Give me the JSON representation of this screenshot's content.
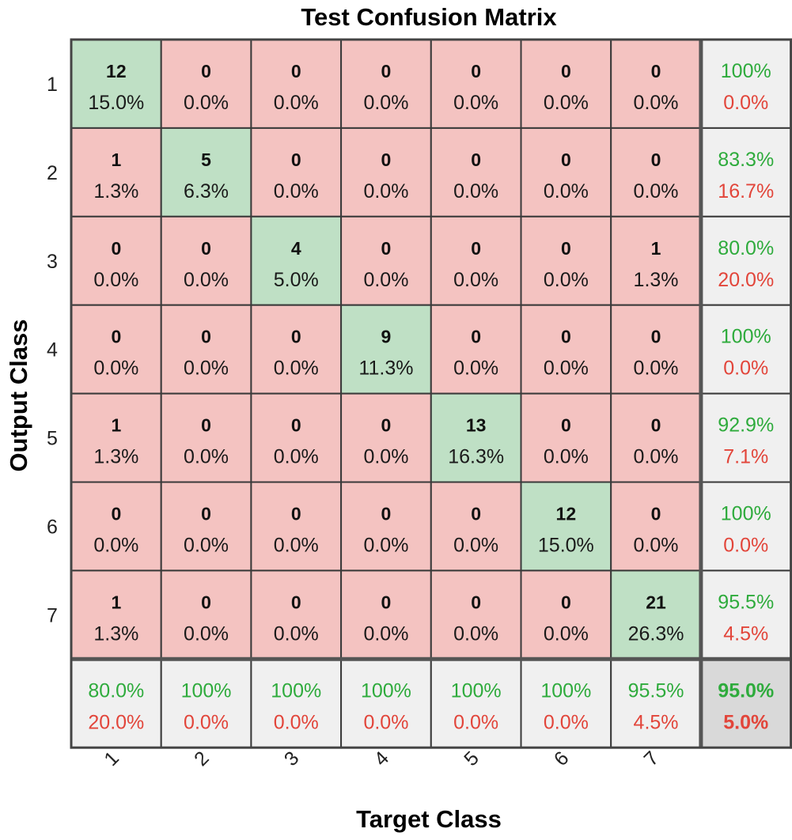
{
  "chart_data": {
    "type": "heatmap",
    "title": "Test Confusion Matrix",
    "xlabel": "Target Class",
    "ylabel": "Output Class",
    "row_labels": [
      "1",
      "2",
      "3",
      "4",
      "5",
      "6",
      "7"
    ],
    "col_labels": [
      "1",
      "2",
      "3",
      "4",
      "5",
      "6",
      "7"
    ],
    "counts": [
      [
        12,
        0,
        0,
        0,
        0,
        0,
        0
      ],
      [
        1,
        5,
        0,
        0,
        0,
        0,
        0
      ],
      [
        0,
        0,
        4,
        0,
        0,
        0,
        1
      ],
      [
        0,
        0,
        0,
        9,
        0,
        0,
        0
      ],
      [
        1,
        0,
        0,
        0,
        13,
        0,
        0
      ],
      [
        0,
        0,
        0,
        0,
        0,
        12,
        0
      ],
      [
        1,
        0,
        0,
        0,
        0,
        0,
        21
      ]
    ],
    "percents": [
      [
        "15.0%",
        "0.0%",
        "0.0%",
        "0.0%",
        "0.0%",
        "0.0%",
        "0.0%"
      ],
      [
        "1.3%",
        "6.3%",
        "0.0%",
        "0.0%",
        "0.0%",
        "0.0%",
        "0.0%"
      ],
      [
        "0.0%",
        "0.0%",
        "5.0%",
        "0.0%",
        "0.0%",
        "0.0%",
        "1.3%"
      ],
      [
        "0.0%",
        "0.0%",
        "0.0%",
        "11.3%",
        "0.0%",
        "0.0%",
        "0.0%"
      ],
      [
        "1.3%",
        "0.0%",
        "0.0%",
        "0.0%",
        "16.3%",
        "0.0%",
        "0.0%"
      ],
      [
        "0.0%",
        "0.0%",
        "0.0%",
        "0.0%",
        "0.0%",
        "15.0%",
        "0.0%"
      ],
      [
        "1.3%",
        "0.0%",
        "0.0%",
        "0.0%",
        "0.0%",
        "0.0%",
        "26.3%"
      ]
    ],
    "row_summary": [
      {
        "correct": "100%",
        "error": "0.0%"
      },
      {
        "correct": "83.3%",
        "error": "16.7%"
      },
      {
        "correct": "80.0%",
        "error": "20.0%"
      },
      {
        "correct": "100%",
        "error": "0.0%"
      },
      {
        "correct": "92.9%",
        "error": "7.1%"
      },
      {
        "correct": "100%",
        "error": "0.0%"
      },
      {
        "correct": "95.5%",
        "error": "4.5%"
      }
    ],
    "col_summary": [
      {
        "correct": "80.0%",
        "error": "20.0%"
      },
      {
        "correct": "100%",
        "error": "0.0%"
      },
      {
        "correct": "100%",
        "error": "0.0%"
      },
      {
        "correct": "100%",
        "error": "0.0%"
      },
      {
        "correct": "100%",
        "error": "0.0%"
      },
      {
        "correct": "100%",
        "error": "0.0%"
      },
      {
        "correct": "95.5%",
        "error": "4.5%"
      }
    ],
    "overall": {
      "correct": "95.0%",
      "error": "5.0%"
    },
    "colors": {
      "diagonal": "#bfe0c5",
      "off_diagonal": "#f4c3c1",
      "summary": "#f0f0f0",
      "overall": "#d9d9d9",
      "correct_text": "#2eab3c",
      "error_text": "#e2453a",
      "grid": "#3a3a3a"
    }
  }
}
